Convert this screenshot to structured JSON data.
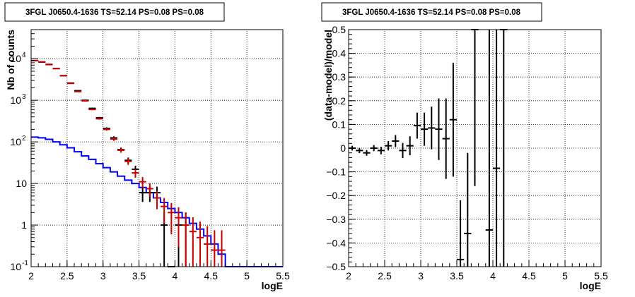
{
  "colors": {
    "data": "#000000",
    "model_red": "#cc0000",
    "model_blue": "#0000ff",
    "frame": "#000000"
  },
  "chart_data": [
    {
      "type": "line",
      "title": "3FGL J0650.4-1636 TS=52.14 PS=0.08 PS=0.08",
      "xlabel": "logE",
      "ylabel": "Nb of counts",
      "xlim": [
        2,
        5.5
      ],
      "ylim": [
        0.1,
        50000
      ],
      "yscale": "log",
      "grid": true,
      "xticks": [
        "2",
        "2.5",
        "3",
        "3.5",
        "4",
        "4.5",
        "5",
        "5.5"
      ],
      "yticks": [
        {
          "value": 0.1,
          "label": "10",
          "exp": "-1"
        },
        {
          "value": 1,
          "label": "1",
          "exp": ""
        },
        {
          "value": 10,
          "label": "10",
          "exp": ""
        },
        {
          "value": 100,
          "label": "10",
          "exp": "2"
        },
        {
          "value": 1000,
          "label": "10",
          "exp": "3"
        },
        {
          "value": 10000,
          "label": "10",
          "exp": "4"
        }
      ],
      "bin_edges": [
        2.0,
        2.1,
        2.2,
        2.3,
        2.4,
        2.5,
        2.6,
        2.7,
        2.8,
        2.9,
        3.0,
        3.1,
        3.2,
        3.3,
        3.4,
        3.5,
        3.6,
        3.7,
        3.8,
        3.9,
        4.0,
        4.1,
        4.2,
        4.3,
        4.4,
        4.5,
        4.6,
        4.7,
        4.8,
        4.9,
        5.0,
        5.1,
        5.2,
        5.3,
        5.4,
        5.5
      ],
      "series": [
        {
          "role": "data",
          "color": "#000000",
          "x": [
            2.05,
            2.15,
            2.25,
            2.35,
            2.45,
            2.55,
            2.65,
            2.75,
            2.85,
            2.95,
            3.05,
            3.15,
            3.25,
            3.35,
            3.45,
            3.55,
            3.65,
            3.75,
            3.85,
            3.95,
            4.05,
            4.15
          ],
          "y": [
            9000,
            8300,
            7300,
            5800,
            3900,
            2600,
            1700,
            1000,
            640,
            380,
            210,
            125,
            65,
            36,
            22,
            6,
            6,
            6,
            1,
            0.1,
            1,
            1
          ],
          "err": [
            95,
            91,
            85,
            76,
            62,
            51,
            41,
            32,
            25,
            19,
            14,
            11,
            8,
            6,
            4.7,
            2.4,
            2.4,
            2.4,
            1,
            0,
            1,
            1
          ]
        },
        {
          "role": "model-sum",
          "color": "#cc0000",
          "x": [
            2.05,
            2.15,
            2.25,
            2.35,
            2.45,
            2.55,
            2.65,
            2.75,
            2.85,
            2.95,
            3.05,
            3.15,
            3.25,
            3.35,
            3.45,
            3.55,
            3.65,
            3.75,
            3.85,
            3.95,
            4.05,
            4.15,
            4.25,
            4.35,
            4.45,
            4.55,
            4.65
          ],
          "y": [
            9000,
            8400,
            7200,
            5800,
            3900,
            2550,
            1620,
            970,
            600,
            360,
            200,
            117,
            63,
            34,
            18,
            11,
            7.5,
            4.5,
            2.8,
            2,
            1.5,
            1,
            0.7,
            0.5,
            0.35,
            0.25,
            0.25
          ],
          "err": [
            95,
            92,
            85,
            76,
            62,
            50,
            40,
            31,
            24,
            19,
            14,
            11,
            8,
            6,
            4.2,
            3.3,
            2.7,
            2.1,
            1.7,
            1.4,
            1.2,
            1,
            0.84,
            0.71,
            0.59,
            0.5,
            0.5
          ]
        },
        {
          "role": "model-component",
          "color": "#0000ff",
          "step_values": [
            130,
            125,
            115,
            100,
            85,
            72,
            58,
            46,
            38,
            30,
            24,
            19,
            15,
            12,
            10,
            8,
            6,
            4.5,
            3.5,
            2.5,
            2,
            1.5,
            1.1,
            0.8,
            0.55,
            0.35,
            0.2,
            0.1,
            0.1,
            0.1,
            0.1,
            0.1,
            0.1,
            0.1,
            0.1
          ]
        }
      ]
    },
    {
      "type": "scatter",
      "title": "3FGL J0650.4-1636 TS=52.14 PS=0.08 PS=0.08",
      "xlabel": "logE",
      "ylabel": "(data-model)/model",
      "xlim": [
        2,
        5.5
      ],
      "ylim": [
        -0.5,
        0.5
      ],
      "grid": true,
      "xticks": [
        "2",
        "2.5",
        "3",
        "3.5",
        "4",
        "4.5",
        "5",
        "5.5"
      ],
      "yticks": [
        "0.5",
        "0.4",
        "0.3",
        "0.2",
        "0.1",
        "0",
        "−0.1",
        "−0.2",
        "−0.3",
        "−0.4",
        "−0.5"
      ],
      "series": [
        {
          "role": "residuals",
          "color": "#000000",
          "x": [
            2.05,
            2.15,
            2.25,
            2.35,
            2.45,
            2.55,
            2.65,
            2.75,
            2.85,
            2.95,
            3.05,
            3.15,
            3.25,
            3.35,
            3.45,
            3.55,
            3.65,
            3.75,
            3.95,
            4.05,
            4.15
          ],
          "y": [
            0.0,
            -0.01,
            -0.02,
            0.0,
            -0.01,
            0.01,
            0.03,
            -0.01,
            0.01,
            0.095,
            0.08,
            0.085,
            0.08,
            0.04,
            0.12,
            -0.47,
            -0.36,
            0.5,
            -0.345,
            -0.085,
            0.5
          ],
          "err": [
            0.01,
            0.011,
            0.012,
            0.013,
            0.016,
            0.02,
            0.025,
            0.032,
            0.04,
            0.055,
            0.07,
            0.09,
            0.13,
            0.17,
            0.24,
            0.25,
            0.34,
            0.66,
            0.9,
            1.0,
            1.0
          ]
        }
      ]
    }
  ]
}
